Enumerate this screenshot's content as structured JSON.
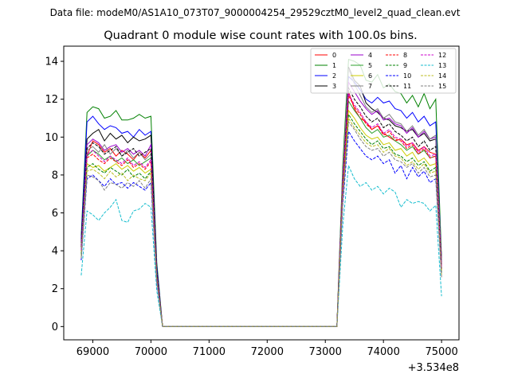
{
  "suptitle": "Data file: modeM0/AS1A10_073T07_9000004254_29529cztM0_level2_quad_clean.evt",
  "chart_data": {
    "type": "line",
    "title": "Quadrant 0 module wise count rates with 100.0s bins.",
    "xlabel": "",
    "ylabel": "",
    "x_offset_label": "+3.534e8",
    "xlim": [
      68500,
      75300
    ],
    "ylim": [
      -0.7,
      14.8
    ],
    "xticks": [
      69000,
      70000,
      71000,
      72000,
      73000,
      74000,
      75000
    ],
    "xtick_labels": [
      "69000",
      "70000",
      "71000",
      "72000",
      "73000",
      "74000",
      "75000"
    ],
    "yticks": [
      0,
      2,
      4,
      6,
      8,
      10,
      12,
      14
    ],
    "ytick_labels": [
      "0",
      "2",
      "4",
      "6",
      "8",
      "10",
      "12",
      "14"
    ],
    "grid": false,
    "legend_placement": "top-right",
    "legend_columns": 4,
    "x": [
      68800,
      68900,
      69000,
      69100,
      69200,
      69300,
      69400,
      69500,
      69600,
      69700,
      69800,
      69900,
      70000,
      70100,
      70200,
      70300,
      70400,
      70500,
      70600,
      70700,
      70800,
      70900,
      71000,
      71100,
      71200,
      71300,
      71400,
      71500,
      71600,
      71700,
      71800,
      71900,
      72000,
      72100,
      72200,
      72300,
      72400,
      72500,
      72600,
      72700,
      72800,
      72900,
      73000,
      73100,
      73200,
      73300,
      73400,
      73500,
      73600,
      73700,
      73800,
      73900,
      74000,
      74100,
      74200,
      74300,
      74400,
      74500,
      74600,
      74700,
      74800,
      74900,
      75000
    ],
    "series": [
      {
        "name": "0",
        "color": "#ff0000",
        "dash": "solid",
        "values": [
          4.3,
          9.0,
          9.8,
          9.6,
          9.2,
          9.4,
          9.0,
          9.3,
          9.1,
          8.8,
          9.2,
          8.9,
          9.3,
          2.8,
          0,
          0,
          0,
          0,
          0,
          0,
          0,
          0,
          0,
          0,
          0,
          0,
          0,
          0,
          0,
          0,
          0,
          0,
          0,
          0,
          0,
          0,
          0,
          0,
          0,
          0,
          0,
          0,
          0,
          0,
          0,
          7.5,
          12.4,
          11.5,
          11.0,
          10.8,
          10.4,
          10.6,
          10.2,
          10.0,
          9.8,
          9.9,
          9.6,
          9.7,
          9.3,
          9.5,
          9.2,
          9.1,
          3.3
        ]
      },
      {
        "name": "1",
        "color": "#008000",
        "dash": "solid",
        "values": [
          4.8,
          11.3,
          11.6,
          11.5,
          11.0,
          11.1,
          11.4,
          10.9,
          10.9,
          11.0,
          11.2,
          11.0,
          11.1,
          3.4,
          0,
          0,
          0,
          0,
          0,
          0,
          0,
          0,
          0,
          0,
          0,
          0,
          0,
          0,
          0,
          0,
          0,
          0,
          0,
          0,
          0,
          0,
          0,
          0,
          0,
          0,
          0,
          0,
          0,
          0,
          0,
          8.5,
          14.1,
          14.0,
          13.8,
          13.0,
          12.9,
          13.3,
          12.6,
          12.8,
          12.4,
          12.3,
          11.8,
          12.2,
          11.6,
          12.3,
          11.5,
          12.0,
          3.6
        ]
      },
      {
        "name": "2",
        "color": "#0000ff",
        "dash": "solid",
        "values": [
          4.6,
          10.8,
          11.1,
          10.7,
          10.4,
          10.6,
          10.5,
          10.2,
          10.3,
          10.0,
          10.4,
          10.1,
          10.3,
          3.2,
          0,
          0,
          0,
          0,
          0,
          0,
          0,
          0,
          0,
          0,
          0,
          0,
          0,
          0,
          0,
          0,
          0,
          0,
          0,
          0,
          0,
          0,
          0,
          0,
          0,
          0,
          0,
          0,
          0,
          0,
          0,
          8.0,
          13.2,
          12.9,
          12.5,
          12.0,
          11.8,
          12.1,
          11.8,
          11.9,
          11.5,
          11.4,
          11.0,
          11.3,
          10.8,
          11.1,
          10.6,
          10.8,
          3.4
        ]
      },
      {
        "name": "3",
        "color": "#000000",
        "dash": "solid",
        "values": [
          4.4,
          9.9,
          10.2,
          10.4,
          9.8,
          10.2,
          9.9,
          10.1,
          9.7,
          10.0,
          9.8,
          9.9,
          10.1,
          3.0,
          0,
          0,
          0,
          0,
          0,
          0,
          0,
          0,
          0,
          0,
          0,
          0,
          0,
          0,
          0,
          0,
          0,
          0,
          0,
          0,
          0,
          0,
          0,
          0,
          0,
          0,
          0,
          0,
          0,
          0,
          0,
          7.9,
          13.7,
          13.0,
          12.7,
          11.8,
          11.5,
          11.3,
          11.0,
          10.9,
          10.6,
          10.5,
          10.3,
          10.4,
          10.0,
          10.2,
          9.8,
          9.9,
          3.5
        ]
      },
      {
        "name": "4",
        "color": "#9900cc",
        "dash": "solid",
        "values": [
          4.2,
          9.6,
          9.9,
          9.7,
          9.3,
          9.5,
          9.6,
          9.2,
          9.4,
          9.1,
          9.3,
          9.0,
          9.6,
          2.9,
          0,
          0,
          0,
          0,
          0,
          0,
          0,
          0,
          0,
          0,
          0,
          0,
          0,
          0,
          0,
          0,
          0,
          0,
          0,
          0,
          0,
          0,
          0,
          0,
          0,
          0,
          0,
          0,
          0,
          0,
          0,
          7.6,
          12.9,
          12.4,
          11.9,
          11.5,
          11.2,
          11.4,
          10.9,
          11.0,
          10.7,
          10.6,
          10.2,
          10.5,
          10.0,
          10.3,
          9.9,
          10.0,
          3.2
        ]
      },
      {
        "name": "5",
        "color": "#2ca02c",
        "dash": "solid",
        "values": [
          4.0,
          9.0,
          9.3,
          9.1,
          8.8,
          9.0,
          8.7,
          8.9,
          8.6,
          8.8,
          8.5,
          8.7,
          8.9,
          2.7,
          0,
          0,
          0,
          0,
          0,
          0,
          0,
          0,
          0,
          0,
          0,
          0,
          0,
          0,
          0,
          0,
          0,
          0,
          0,
          0,
          0,
          0,
          0,
          0,
          0,
          0,
          0,
          0,
          0,
          0,
          0,
          7.2,
          11.9,
          11.4,
          11.0,
          10.5,
          10.2,
          10.4,
          10.0,
          10.1,
          9.8,
          9.6,
          9.3,
          9.5,
          9.1,
          9.3,
          8.9,
          9.0,
          3.0
        ]
      },
      {
        "name": "6",
        "color": "#cccc00",
        "dash": "solid",
        "values": [
          3.9,
          8.6,
          8.4,
          8.5,
          8.2,
          8.4,
          8.6,
          8.3,
          8.5,
          8.2,
          8.4,
          8.1,
          8.3,
          2.6,
          0,
          0,
          0,
          0,
          0,
          0,
          0,
          0,
          0,
          0,
          0,
          0,
          0,
          0,
          0,
          0,
          0,
          0,
          0,
          0,
          0,
          0,
          0,
          0,
          0,
          0,
          0,
          0,
          0,
          0,
          0,
          7.0,
          11.4,
          11.0,
          10.5,
          10.1,
          9.9,
          10.0,
          9.6,
          9.7,
          9.3,
          9.4,
          9.0,
          9.2,
          8.7,
          8.9,
          8.5,
          8.6,
          2.9
        ]
      },
      {
        "name": "7",
        "color": "#808080",
        "dash": "solid",
        "values": [
          4.1,
          9.3,
          9.5,
          9.2,
          9.6,
          9.1,
          9.4,
          9.0,
          9.3,
          8.9,
          9.2,
          8.8,
          9.1,
          2.8,
          0,
          0,
          0,
          0,
          0,
          0,
          0,
          0,
          0,
          0,
          0,
          0,
          0,
          0,
          0,
          0,
          0,
          0,
          0,
          0,
          0,
          0,
          0,
          0,
          0,
          0,
          0,
          0,
          0,
          0,
          0,
          8.2,
          13.6,
          12.8,
          12.2,
          11.6,
          11.3,
          11.5,
          11.0,
          11.2,
          10.8,
          10.7,
          10.3,
          10.6,
          10.1,
          10.4,
          9.9,
          10.1,
          3.4
        ]
      },
      {
        "name": "8",
        "color": "#ff0000",
        "dash": "dashed",
        "values": [
          4.0,
          8.9,
          9.1,
          8.8,
          8.6,
          8.9,
          8.7,
          8.5,
          8.8,
          8.4,
          8.6,
          8.3,
          8.7,
          2.6,
          0,
          0,
          0,
          0,
          0,
          0,
          0,
          0,
          0,
          0,
          0,
          0,
          0,
          0,
          0,
          0,
          0,
          0,
          0,
          0,
          0,
          0,
          0,
          0,
          0,
          0,
          0,
          0,
          0,
          0,
          0,
          7.3,
          12.2,
          11.6,
          11.2,
          10.7,
          10.4,
          10.6,
          10.1,
          10.3,
          9.9,
          9.8,
          9.4,
          9.6,
          9.1,
          9.4,
          8.9,
          9.0,
          3.0
        ]
      },
      {
        "name": "9",
        "color": "#008000",
        "dash": "dashed",
        "values": [
          3.8,
          8.4,
          8.6,
          8.3,
          8.1,
          8.4,
          8.2,
          8.0,
          8.3,
          7.9,
          8.1,
          7.8,
          8.2,
          2.5,
          0,
          0,
          0,
          0,
          0,
          0,
          0,
          0,
          0,
          0,
          0,
          0,
          0,
          0,
          0,
          0,
          0,
          0,
          0,
          0,
          0,
          0,
          0,
          0,
          0,
          0,
          0,
          0,
          0,
          0,
          0,
          6.9,
          11.2,
          10.7,
          10.3,
          9.9,
          9.6,
          9.8,
          9.4,
          9.5,
          9.1,
          9.0,
          8.7,
          8.9,
          8.5,
          8.7,
          8.2,
          8.4,
          2.8
        ]
      },
      {
        "name": "10",
        "color": "#0000ff",
        "dash": "dashed",
        "values": [
          3.5,
          7.8,
          8.0,
          7.7,
          7.4,
          7.8,
          7.5,
          7.6,
          7.3,
          7.6,
          7.4,
          7.2,
          7.6,
          2.3,
          0,
          0,
          0,
          0,
          0,
          0,
          0,
          0,
          0,
          0,
          0,
          0,
          0,
          0,
          0,
          0,
          0,
          0,
          0,
          0,
          0,
          0,
          0,
          0,
          0,
          0,
          0,
          0,
          0,
          0,
          0,
          6.4,
          10.3,
          9.8,
          9.4,
          9.0,
          8.8,
          9.0,
          8.6,
          8.8,
          8.1,
          8.5,
          7.8,
          8.4,
          7.9,
          8.2,
          7.6,
          7.8,
          2.6
        ]
      },
      {
        "name": "11",
        "color": "#000000",
        "dash": "dashed",
        "values": [
          4.2,
          9.4,
          9.7,
          9.5,
          9.1,
          9.3,
          9.5,
          9.0,
          9.2,
          9.4,
          9.0,
          9.2,
          9.4,
          2.9,
          0,
          0,
          0,
          0,
          0,
          0,
          0,
          0,
          0,
          0,
          0,
          0,
          0,
          0,
          0,
          0,
          0,
          0,
          0,
          0,
          0,
          0,
          0,
          0,
          0,
          0,
          0,
          0,
          0,
          0,
          0,
          7.6,
          12.6,
          12.0,
          11.6,
          11.1,
          10.8,
          11.0,
          10.5,
          10.7,
          10.3,
          10.1,
          9.8,
          10.0,
          9.5,
          9.8,
          9.3,
          9.5,
          3.1
        ]
      },
      {
        "name": "12",
        "color": "#cc00cc",
        "dash": "dashed",
        "values": [
          4.0,
          9.1,
          9.3,
          9.0,
          8.7,
          9.0,
          8.8,
          8.6,
          8.9,
          8.5,
          8.7,
          8.4,
          8.8,
          2.7,
          0,
          0,
          0,
          0,
          0,
          0,
          0,
          0,
          0,
          0,
          0,
          0,
          0,
          0,
          0,
          0,
          0,
          0,
          0,
          0,
          0,
          0,
          0,
          0,
          0,
          0,
          0,
          0,
          0,
          0,
          0,
          7.4,
          12.3,
          11.7,
          11.3,
          10.8,
          10.5,
          10.7,
          10.2,
          10.4,
          10.0,
          9.9,
          9.5,
          9.7,
          9.2,
          9.5,
          9.0,
          9.1,
          3.1
        ]
      },
      {
        "name": "13",
        "color": "#17becf",
        "dash": "dashed",
        "values": [
          2.7,
          6.1,
          5.9,
          5.6,
          6.0,
          6.3,
          6.7,
          5.6,
          5.5,
          6.1,
          6.2,
          6.5,
          6.3,
          1.9,
          0,
          0,
          0,
          0,
          0,
          0,
          0,
          0,
          0,
          0,
          0,
          0,
          0,
          0,
          0,
          0,
          0,
          0,
          0,
          0,
          0,
          0,
          0,
          0,
          0,
          0,
          0,
          0,
          0,
          0,
          0,
          5.3,
          8.5,
          7.8,
          7.4,
          7.6,
          7.2,
          7.4,
          7.0,
          7.3,
          7.1,
          6.3,
          6.7,
          6.5,
          6.6,
          6.5,
          6.1,
          6.4,
          1.6
        ]
      },
      {
        "name": "14",
        "color": "#bcbd22",
        "dash": "dashed",
        "values": [
          3.7,
          8.2,
          8.3,
          8.1,
          7.8,
          8.2,
          7.9,
          8.1,
          7.7,
          8.0,
          7.8,
          7.7,
          8.1,
          2.5,
          0,
          0,
          0,
          0,
          0,
          0,
          0,
          0,
          0,
          0,
          0,
          0,
          0,
          0,
          0,
          0,
          0,
          0,
          0,
          0,
          0,
          0,
          0,
          0,
          0,
          0,
          0,
          0,
          0,
          0,
          0,
          6.8,
          11.0,
          10.5,
          10.1,
          9.7,
          9.5,
          9.6,
          9.2,
          9.4,
          9.0,
          8.9,
          8.5,
          8.7,
          8.3,
          8.6,
          8.1,
          8.2,
          2.7
        ]
      },
      {
        "name": "15",
        "color": "#7f7f7f",
        "dash": "dashed",
        "values": [
          3.6,
          8.0,
          7.9,
          7.7,
          7.2,
          7.6,
          7.5,
          7.3,
          7.6,
          7.4,
          7.7,
          7.3,
          7.8,
          2.4,
          0,
          0,
          0,
          0,
          0,
          0,
          0,
          0,
          0,
          0,
          0,
          0,
          0,
          0,
          0,
          0,
          0,
          0,
          0,
          0,
          0,
          0,
          0,
          0,
          0,
          0,
          0,
          0,
          0,
          0,
          0,
          6.6,
          10.8,
          10.4,
          9.9,
          9.5,
          9.3,
          9.4,
          9.0,
          9.2,
          8.8,
          8.7,
          8.4,
          8.6,
          8.1,
          8.4,
          7.9,
          8.0,
          2.6
        ]
      }
    ]
  }
}
